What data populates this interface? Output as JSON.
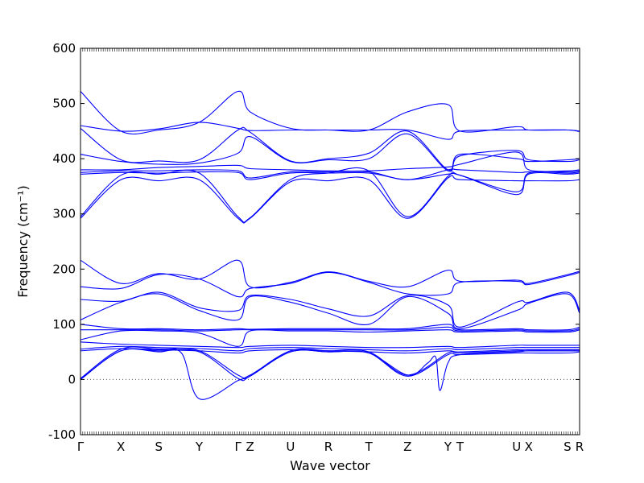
{
  "chart_data": {
    "type": "line",
    "xlabel": "Wave vector",
    "ylabel": "Frequency (cm⁻¹)",
    "ylim": [
      -100,
      600
    ],
    "yticks": [
      -100,
      0,
      100,
      200,
      300,
      400,
      500,
      600
    ],
    "high_symmetry_points": [
      {
        "label": "Γ",
        "x": 0.0
      },
      {
        "label": "X",
        "x": 0.5
      },
      {
        "label": "S",
        "x": 0.97
      },
      {
        "label": "Y",
        "x": 1.47
      },
      {
        "label": "Γ",
        "x": 1.95
      },
      {
        "label": "Z",
        "x": 2.1
      },
      {
        "label": "U",
        "x": 2.6
      },
      {
        "label": "R",
        "x": 3.07
      },
      {
        "label": "T",
        "x": 3.57
      },
      {
        "label": "Z",
        "x": 4.05
      },
      {
        "label": "Y",
        "x": 4.55
      },
      {
        "label": "T",
        "x": 4.7
      },
      {
        "label": "U",
        "x": 5.4
      },
      {
        "label": "X",
        "x": 5.55
      },
      {
        "label": "S",
        "x": 6.03
      },
      {
        "label": "R",
        "x": 6.18
      }
    ],
    "xlim": [
      0,
      6.18
    ],
    "zero_line": true,
    "line_color": "#0000ff",
    "series": [
      {
        "x": [
          0,
          0.5,
          0.97,
          1.47,
          1.95,
          2.1,
          2.6,
          3.07,
          3.57,
          4.05,
          4.55,
          4.7,
          5.4,
          5.55,
          6.03,
          6.18
        ],
        "y": [
          522,
          450,
          452,
          466,
          522,
          485,
          455,
          452,
          452,
          485,
          498,
          450,
          458,
          452,
          452,
          450
        ]
      },
      {
        "x": [
          0,
          0.5,
          0.97,
          1.47,
          1.95,
          2.1,
          2.6,
          3.07,
          3.57,
          4.05,
          4.55,
          4.7,
          5.4,
          5.55,
          6.03,
          6.18
        ],
        "y": [
          460,
          450,
          454,
          466,
          455,
          451,
          452,
          452,
          452,
          452,
          435,
          450,
          452,
          452,
          452,
          449
        ]
      },
      {
        "x": [
          0,
          0.5,
          0.97,
          1.47,
          1.95,
          2.1,
          2.6,
          3.07,
          3.57,
          4.05,
          4.55,
          4.7,
          5.4,
          5.55,
          6.03,
          6.18
        ],
        "y": [
          455,
          398,
          396,
          398,
          452,
          448,
          396,
          400,
          410,
          450,
          380,
          408,
          400,
          395,
          398,
          400
        ]
      },
      {
        "x": [
          0,
          0.5,
          0.97,
          1.47,
          1.95,
          2.1,
          2.6,
          3.07,
          3.57,
          4.05,
          4.55,
          4.7,
          5.4,
          5.55,
          6.03,
          6.18
        ],
        "y": [
          408,
          395,
          390,
          392,
          410,
          440,
          395,
          398,
          400,
          445,
          378,
          405,
          415,
          398,
          395,
          398
        ]
      },
      {
        "x": [
          0,
          0.5,
          0.97,
          1.47,
          1.95,
          2.1,
          2.6,
          3.07,
          3.57,
          4.05,
          4.55,
          4.7,
          5.4,
          5.55,
          6.03,
          6.18
        ],
        "y": [
          380,
          380,
          384,
          386,
          388,
          382,
          380,
          378,
          378,
          382,
          385,
          390,
          412,
          380,
          378,
          380
        ]
      },
      {
        "x": [
          0,
          0.5,
          0.97,
          1.47,
          1.95,
          2.1,
          2.6,
          3.07,
          3.57,
          4.05,
          4.55,
          4.7,
          5.4,
          5.55,
          6.03,
          6.18
        ],
        "y": [
          375,
          378,
          378,
          380,
          378,
          365,
          376,
          376,
          376,
          362,
          380,
          380,
          375,
          376,
          376,
          378
        ]
      },
      {
        "x": [
          0,
          0.5,
          0.97,
          1.47,
          1.95,
          2.1,
          2.6,
          3.07,
          3.57,
          4.05,
          4.55,
          4.7,
          5.4,
          5.55,
          6.03,
          6.18
        ],
        "y": [
          372,
          375,
          374,
          376,
          375,
          362,
          374,
          374,
          374,
          362,
          372,
          370,
          340,
          374,
          374,
          376
        ]
      },
      {
        "x": [
          0,
          0.5,
          0.97,
          1.47,
          1.95,
          2.1,
          2.6,
          3.07,
          3.57,
          4.05,
          4.55,
          4.7,
          5.4,
          5.55,
          6.03,
          6.18
        ],
        "y": [
          295,
          370,
          372,
          374,
          295,
          293,
          362,
          374,
          378,
          295,
          368,
          370,
          335,
          372,
          372,
          374
        ]
      },
      {
        "x": [
          0,
          0.5,
          0.97,
          1.47,
          1.95,
          2.1,
          2.6,
          3.07,
          3.57,
          4.05,
          4.55,
          4.7,
          5.4,
          5.55,
          6.03,
          6.18
        ],
        "y": [
          292,
          362,
          360,
          362,
          292,
          292,
          358,
          360,
          362,
          292,
          365,
          362,
          360,
          360,
          360,
          362
        ]
      },
      {
        "x": [
          0,
          0.5,
          0.97,
          1.47,
          1.95,
          2.1,
          2.6,
          3.07,
          3.57,
          4.05,
          4.55,
          4.7,
          5.4,
          5.55,
          6.03,
          6.18
        ],
        "y": [
          216,
          174,
          192,
          182,
          216,
          168,
          176,
          195,
          178,
          168,
          198,
          178,
          180,
          174,
          190,
          196
        ]
      },
      {
        "x": [
          0,
          0.5,
          0.97,
          1.47,
          1.95,
          2.1,
          2.6,
          3.07,
          3.57,
          4.05,
          4.55,
          4.7,
          5.4,
          5.55,
          6.03,
          6.18
        ],
        "y": [
          168,
          165,
          190,
          182,
          150,
          165,
          174,
          194,
          176,
          155,
          155,
          176,
          178,
          172,
          188,
          194
        ]
      },
      {
        "x": [
          0,
          0.5,
          0.97,
          1.47,
          1.95,
          2.1,
          2.6,
          3.07,
          3.57,
          4.05,
          4.55,
          4.7,
          5.4,
          5.55,
          6.03,
          6.18
        ],
        "y": [
          145,
          142,
          158,
          130,
          125,
          152,
          145,
          128,
          115,
          152,
          135,
          95,
          140,
          140,
          158,
          125
        ]
      },
      {
        "x": [
          0,
          0.5,
          0.97,
          1.47,
          1.95,
          2.1,
          2.6,
          3.07,
          3.57,
          4.05,
          4.55,
          4.7,
          5.4,
          5.55,
          6.03,
          6.18
        ],
        "y": [
          108,
          140,
          155,
          125,
          108,
          150,
          140,
          120,
          100,
          150,
          120,
          92,
          125,
          138,
          155,
          120
        ]
      },
      {
        "x": [
          0,
          0.5,
          0.97,
          1.47,
          1.95,
          2.1,
          2.6,
          3.07,
          3.57,
          4.05,
          4.55,
          4.7,
          5.4,
          5.55,
          6.03,
          6.18
        ],
        "y": [
          100,
          92,
          92,
          90,
          92,
          91,
          92,
          92,
          92,
          92,
          100,
          90,
          92,
          90,
          90,
          95
        ]
      },
      {
        "x": [
          0,
          0.5,
          0.97,
          1.47,
          1.95,
          2.1,
          2.6,
          3.07,
          3.57,
          4.05,
          4.55,
          4.7,
          5.4,
          5.55,
          6.03,
          6.18
        ],
        "y": [
          90,
          90,
          90,
          88,
          90,
          90,
          90,
          90,
          90,
          90,
          95,
          88,
          90,
          88,
          88,
          92
        ]
      },
      {
        "x": [
          0,
          0.5,
          0.97,
          1.47,
          1.95,
          2.1,
          2.6,
          3.07,
          3.57,
          4.05,
          4.55,
          4.7,
          5.4,
          5.55,
          6.03,
          6.18
        ],
        "y": [
          72,
          88,
          88,
          84,
          60,
          88,
          88,
          88,
          86,
          88,
          90,
          86,
          88,
          86,
          86,
          90
        ]
      },
      {
        "x": [
          0,
          0.5,
          0.97,
          1.47,
          1.95,
          2.1,
          2.6,
          3.07,
          3.57,
          4.05,
          4.55,
          4.7,
          5.4,
          5.55,
          6.03,
          6.18
        ],
        "y": [
          68,
          64,
          62,
          60,
          58,
          60,
          62,
          60,
          58,
          58,
          60,
          58,
          62,
          62,
          62,
          62
        ]
      },
      {
        "x": [
          0,
          0.5,
          0.97,
          1.47,
          1.95,
          2.1,
          2.6,
          3.07,
          3.57,
          4.05,
          4.55,
          4.7,
          5.4,
          5.55,
          6.03,
          6.18
        ],
        "y": [
          55,
          60,
          58,
          56,
          52,
          56,
          58,
          56,
          54,
          52,
          56,
          54,
          58,
          58,
          58,
          58
        ]
      },
      {
        "x": [
          0,
          0.5,
          0.97,
          1.47,
          1.95,
          2.1,
          2.6,
          3.07,
          3.57,
          4.05,
          4.55,
          4.7,
          5.4,
          5.55,
          6.03,
          6.18
        ],
        "y": [
          52,
          56,
          54,
          52,
          48,
          52,
          54,
          52,
          50,
          48,
          52,
          50,
          54,
          54,
          54,
          54
        ]
      },
      {
        "x": [
          0,
          0.5,
          0.97,
          1.47,
          1.95,
          2.1,
          2.6,
          3.07,
          3.57,
          4.05,
          4.55,
          4.7,
          5.4,
          5.55,
          6.03,
          6.18
        ],
        "y": [
          2,
          55,
          55,
          52,
          8,
          8,
          52,
          52,
          50,
          8,
          48,
          48,
          52,
          52,
          52,
          52
        ]
      },
      {
        "x": [
          0,
          0.5,
          0.97,
          1.47,
          1.95,
          2.1,
          2.6,
          3.07,
          3.57,
          4.05,
          4.55,
          4.7,
          5.4,
          5.55,
          6.03,
          6.18
        ],
        "y": [
          0,
          52,
          52,
          50,
          2,
          6,
          50,
          50,
          48,
          6,
          45,
          45,
          48,
          48,
          48,
          50
        ]
      },
      {
        "x": [
          0,
          0.5,
          0.97,
          1.25,
          1.47,
          1.95,
          2.1,
          2.6,
          3.07,
          3.57,
          4.05,
          4.3,
          4.4,
          4.45,
          4.55,
          4.7,
          5.4,
          5.55,
          6.03,
          6.18
        ],
        "y": [
          0,
          52,
          50,
          48,
          -35,
          -2,
          6,
          50,
          50,
          48,
          8,
          30,
          40,
          -20,
          30,
          45,
          50,
          52,
          52,
          52
        ]
      }
    ]
  }
}
